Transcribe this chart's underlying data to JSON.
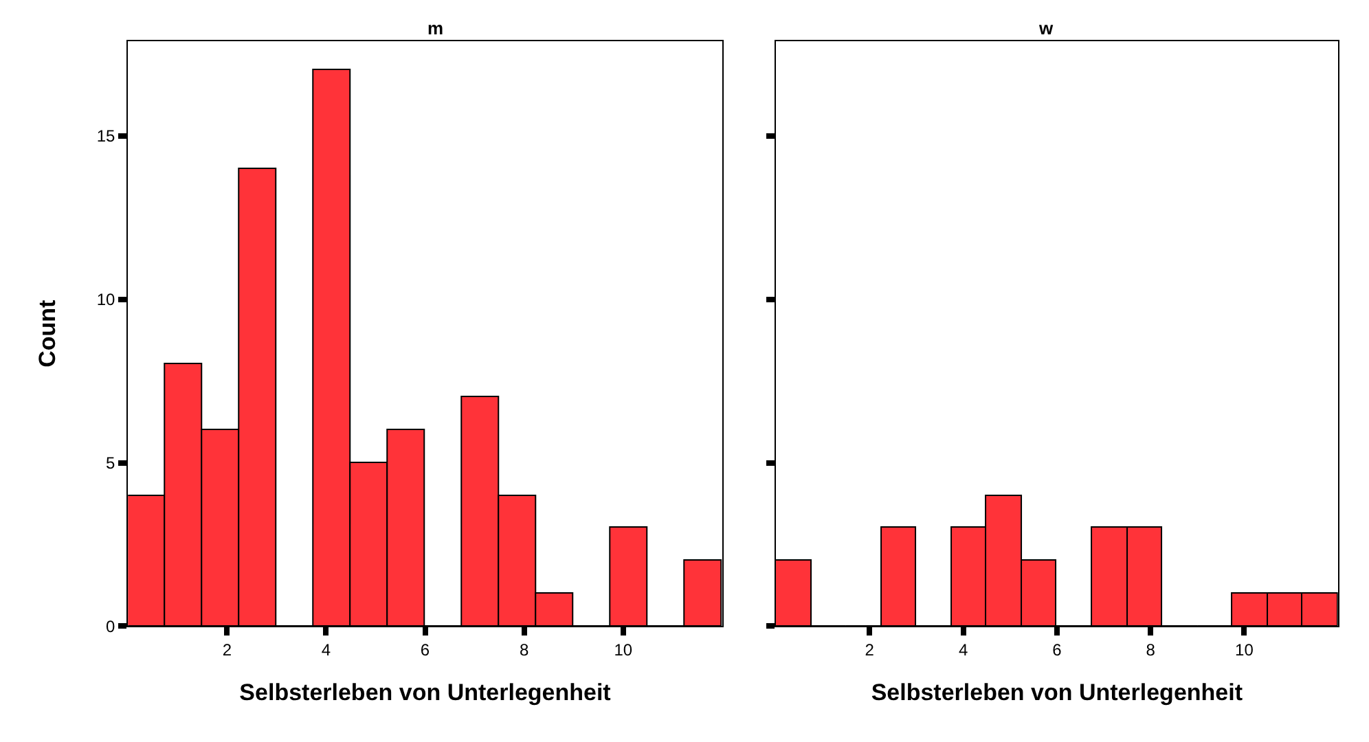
{
  "chart_data": [
    {
      "type": "histogram",
      "title": "m",
      "xlabel": "Selbsterleben von Unterlegenheit",
      "ylabel": "Count",
      "color": "#ff3339",
      "bins": [
        0,
        0.75,
        1.5,
        2.25,
        3,
        3.75,
        4.5,
        5.25,
        6,
        6.75,
        7.5,
        8.25,
        9,
        9.75,
        10.5,
        11.25,
        12
      ],
      "values": [
        4,
        8,
        6,
        14,
        0,
        17,
        5,
        6,
        0,
        7,
        4,
        1,
        0,
        3,
        0,
        2
      ],
      "xlim": [
        0,
        12
      ],
      "xticks": [
        2,
        4,
        6,
        8,
        10
      ],
      "ylim": [
        0,
        17.9
      ],
      "yticks": [
        0,
        5,
        10,
        15
      ]
    },
    {
      "type": "histogram",
      "title": "w",
      "xlabel": "Selbsterleben von Unterlegenheit",
      "color": "#ff3339",
      "bins": [
        0,
        0.75,
        1.5,
        2.25,
        3,
        3.75,
        4.5,
        5.25,
        6,
        6.75,
        7.5,
        8.25,
        9,
        9.75,
        10.5,
        11.25,
        12
      ],
      "values": [
        2,
        0,
        0,
        3,
        0,
        3,
        4,
        2,
        0,
        3,
        3,
        0,
        0,
        1,
        1,
        1
      ],
      "xlim": [
        0,
        12
      ],
      "xticks": [
        2,
        4,
        6,
        8,
        10
      ],
      "ylim": [
        0,
        17.9
      ],
      "yticks": [
        0,
        5,
        10,
        15
      ],
      "tick_labels": "x"
    }
  ]
}
